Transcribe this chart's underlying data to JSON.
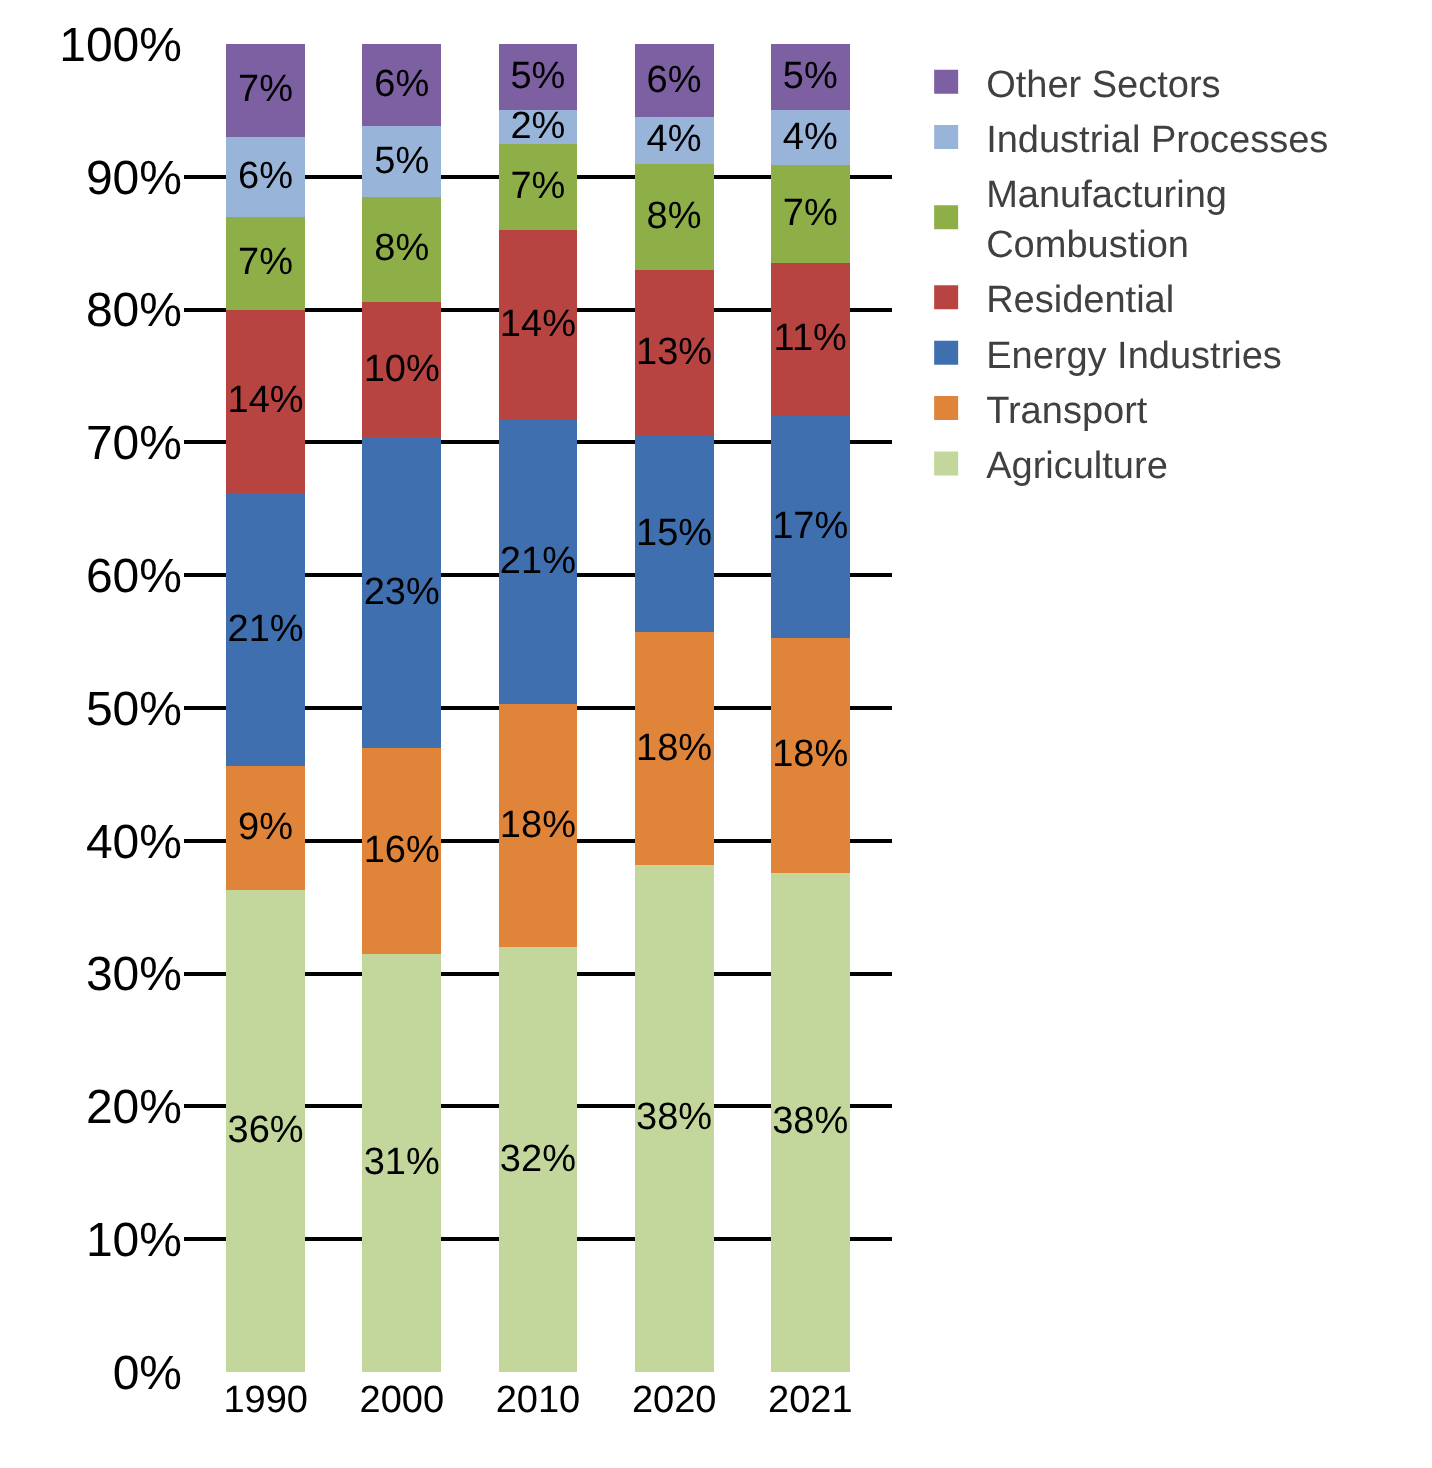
{
  "chart_data": {
    "type": "bar",
    "stacked": true,
    "categories": [
      "1990",
      "2000",
      "2010",
      "2020",
      "2021"
    ],
    "series": [
      {
        "name": "Agriculture",
        "color": "#c3d69b",
        "values": [
          36.3,
          31.5,
          32,
          38.2,
          37.6
        ],
        "value_labels": [
          "36%",
          "31%",
          "32%",
          "38%",
          "38%"
        ]
      },
      {
        "name": "Transport",
        "color": "#e0843a",
        "values": [
          9.3,
          15.5,
          18.3,
          17.5,
          17.7
        ],
        "value_labels": [
          "9%",
          "16%",
          "18%",
          "18%",
          "18%"
        ]
      },
      {
        "name": "Energy Industries",
        "color": "#3f6faf",
        "values": [
          20.6,
          23.3,
          21.4,
          14.8,
          16.7
        ],
        "value_labels": [
          "21%",
          "23%",
          "21%",
          "15%",
          "17%"
        ]
      },
      {
        "name": "Residential",
        "color": "#b84442",
        "values": [
          13.8,
          10.3,
          14.3,
          12.5,
          11.5
        ],
        "value_labels": [
          "14%",
          "10%",
          "14%",
          "13%",
          "11%"
        ]
      },
      {
        "name": "Manufacturing Combustion",
        "color": "#8eae48",
        "values": [
          7,
          7.9,
          6.5,
          8,
          7.4
        ],
        "value_labels": [
          "7%",
          "8%",
          "7%",
          "8%",
          "7%"
        ]
      },
      {
        "name": "Industrial Processes",
        "color": "#98b4d8",
        "values": [
          6,
          5.3,
          2.5,
          3.5,
          4.1
        ],
        "value_labels": [
          "6%",
          "5%",
          "2%",
          "4%",
          "4%"
        ]
      },
      {
        "name": "Other Sectors",
        "color": "#7c60a2",
        "values": [
          7,
          6.2,
          5,
          5.5,
          5
        ],
        "value_labels": [
          "7%",
          "6%",
          "5%",
          "6%",
          "5%"
        ]
      }
    ],
    "ylim": [
      0,
      100
    ],
    "yticks": [
      {
        "value": 0,
        "label": "0%"
      },
      {
        "value": 10,
        "label": "10%"
      },
      {
        "value": 20,
        "label": "20%"
      },
      {
        "value": 30,
        "label": "30%"
      },
      {
        "value": 40,
        "label": "40%"
      },
      {
        "value": 50,
        "label": "50%"
      },
      {
        "value": 60,
        "label": "60%"
      },
      {
        "value": 70,
        "label": "70%"
      },
      {
        "value": 80,
        "label": "80%"
      },
      {
        "value": 90,
        "label": "90%"
      },
      {
        "value": 100,
        "label": "100%"
      }
    ],
    "grid": "y",
    "legend": "right"
  }
}
